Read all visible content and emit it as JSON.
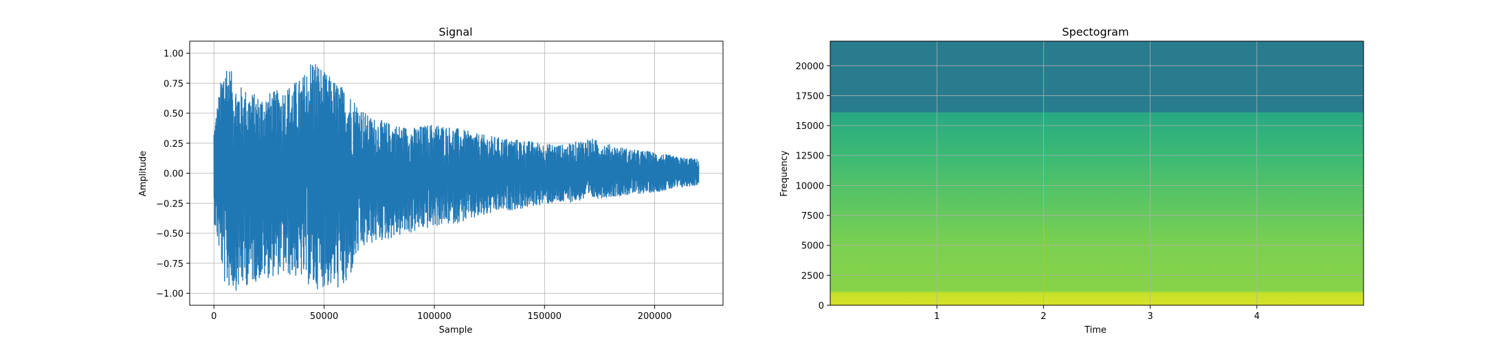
{
  "chart_data": [
    {
      "type": "line",
      "title": "Signal",
      "xlabel": "Sample",
      "ylabel": "Amplitude",
      "xlim": [
        -11000,
        231000
      ],
      "ylim": [
        -1.1,
        1.1
      ],
      "x_ticks": [
        0,
        50000,
        100000,
        150000,
        200000
      ],
      "x_tick_labels": [
        "0",
        "50000",
        "100000",
        "150000",
        "200000"
      ],
      "y_ticks": [
        -1.0,
        -0.75,
        -0.5,
        -0.25,
        0.0,
        0.25,
        0.5,
        0.75,
        1.0
      ],
      "y_tick_labels": [
        "−1.00",
        "−0.75",
        "−0.50",
        "−0.25",
        "0.00",
        "0.25",
        "0.50",
        "0.75",
        "1.00"
      ],
      "grid": true,
      "series": [
        {
          "color": "#1f77b4",
          "x": [
            0,
            5000,
            10000,
            20000,
            30000,
            40000,
            45000,
            50000,
            60000,
            65000,
            70000,
            80000,
            90000,
            100000,
            110000,
            120000,
            130000,
            140000,
            150000,
            160000,
            170000,
            180000,
            190000,
            200000,
            210000,
            220000
          ],
          "upper": [
            0.4,
            1.0,
            0.75,
            0.65,
            0.7,
            0.8,
            1.0,
            0.85,
            0.7,
            0.6,
            0.48,
            0.42,
            0.38,
            0.42,
            0.38,
            0.33,
            0.3,
            0.28,
            0.25,
            0.24,
            0.3,
            0.24,
            0.2,
            0.18,
            0.14,
            0.12
          ],
          "lower": [
            -0.4,
            -0.95,
            -0.98,
            -0.9,
            -0.85,
            -0.88,
            -0.98,
            -0.95,
            -0.98,
            -0.7,
            -0.6,
            -0.55,
            -0.5,
            -0.45,
            -0.42,
            -0.38,
            -0.32,
            -0.3,
            -0.26,
            -0.25,
            -0.22,
            -0.2,
            -0.18,
            -0.16,
            -0.13,
            -0.1
          ]
        }
      ]
    },
    {
      "type": "heatmap",
      "title": "Spectogram",
      "xlabel": "Time",
      "ylabel": "Frequency",
      "xlim": [
        0,
        5
      ],
      "ylim": [
        0,
        22050
      ],
      "x_ticks": [
        1,
        2,
        3,
        4
      ],
      "x_tick_labels": [
        "1",
        "2",
        "3",
        "4"
      ],
      "y_ticks": [
        0,
        2500,
        5000,
        7500,
        10000,
        12500,
        15000,
        17500,
        20000
      ],
      "y_tick_labels": [
        "0",
        "2500",
        "5000",
        "7500",
        "10000",
        "12500",
        "15000",
        "17500",
        "20000"
      ],
      "grid": true,
      "colormap": "viridis",
      "cutoff_frequency": 16100,
      "intensity_levels": {
        "below_1000_hz": 0.92,
        "1000_to_5000_hz": 0.8,
        "5000_to_12500_hz": 0.68,
        "12500_to_16100_hz": 0.6,
        "above_cutoff": 0.42
      }
    }
  ]
}
